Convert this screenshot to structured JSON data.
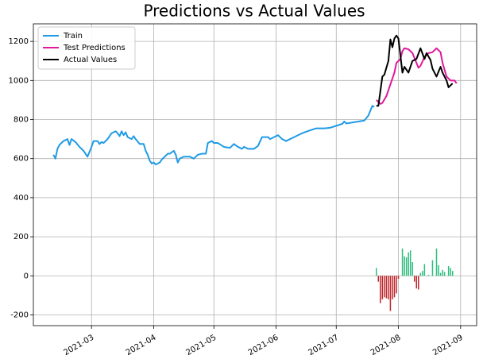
{
  "chart_data": {
    "type": "line",
    "title": "Predictions vs Actual Values",
    "xlim": [
      30,
      251
    ],
    "ylim": [
      -255,
      1290
    ],
    "xticks": [
      {
        "value": 59,
        "label": "2021-03"
      },
      {
        "value": 90,
        "label": "2021-04"
      },
      {
        "value": 120,
        "label": "2021-05"
      },
      {
        "value": 151,
        "label": "2021-06"
      },
      {
        "value": 181,
        "label": "2021-07"
      },
      {
        "value": 212,
        "label": "2021-08"
      },
      {
        "value": 243,
        "label": "2021-09"
      }
    ],
    "yticks": [
      -200,
      0,
      200,
      400,
      600,
      800,
      1000,
      1200
    ],
    "grid": true,
    "legend": "upper left",
    "series": [
      {
        "name": "Train",
        "type": "line",
        "color": "#1f9be6",
        "x": [
          40,
          41,
          42,
          43,
          45,
          46,
          47,
          48,
          49,
          51,
          53,
          55,
          57,
          59,
          60,
          62,
          63,
          64,
          65,
          67,
          69,
          71,
          72,
          73,
          74,
          75,
          76,
          77,
          79,
          80,
          81,
          83,
          85,
          86,
          87,
          88,
          89,
          90,
          91,
          93,
          94,
          96,
          97,
          98,
          100,
          101,
          102,
          103,
          105,
          108,
          110,
          112,
          114,
          116,
          117,
          119,
          120,
          122,
          125,
          128,
          130,
          132,
          134,
          135,
          137,
          140,
          142,
          144,
          147,
          148,
          150,
          152,
          154,
          156,
          160,
          164,
          168,
          171,
          175,
          178,
          181,
          184,
          185,
          186,
          189,
          192,
          195,
          197,
          199,
          200
        ],
        "values": [
          620,
          600,
          650,
          670,
          690,
          695,
          700,
          670,
          700,
          685,
          660,
          640,
          610,
          660,
          690,
          690,
          675,
          685,
          680,
          700,
          730,
          740,
          730,
          715,
          740,
          720,
          735,
          710,
          700,
          715,
          700,
          675,
          675,
          640,
          620,
          590,
          575,
          580,
          570,
          580,
          595,
          615,
          625,
          625,
          640,
          620,
          580,
          600,
          610,
          610,
          600,
          620,
          625,
          625,
          680,
          690,
          680,
          680,
          660,
          655,
          675,
          660,
          650,
          660,
          650,
          650,
          665,
          710,
          710,
          700,
          710,
          720,
          700,
          690,
          710,
          730,
          745,
          755,
          755,
          758,
          768,
          778,
          790,
          780,
          785,
          790,
          795,
          820,
          870,
          865
        ]
      },
      {
        "name": "Test Predictions",
        "type": "line",
        "color": "#e0199b",
        "x": [
          201,
          203,
          204,
          206,
          208,
          210,
          211,
          213,
          214,
          215,
          217,
          219,
          222,
          223,
          225,
          227,
          229,
          231,
          233,
          234,
          236,
          238,
          240,
          241
        ],
        "values": [
          900,
          880,
          885,
          920,
          980,
          1040,
          1090,
          1110,
          1150,
          1165,
          1160,
          1140,
          1065,
          1075,
          1120,
          1140,
          1145,
          1165,
          1145,
          1090,
          1020,
          1000,
          1000,
          985
        ]
      },
      {
        "name": "Actual Values",
        "type": "line",
        "color": "#000000",
        "x": [
          201,
          202,
          204,
          205,
          207,
          208,
          209,
          210,
          211,
          212,
          214,
          215,
          217,
          219,
          221,
          223,
          225,
          226,
          228,
          229,
          231,
          233,
          234,
          236,
          237,
          239
        ],
        "values": [
          870,
          870,
          1020,
          1030,
          1100,
          1210,
          1170,
          1215,
          1230,
          1215,
          1040,
          1070,
          1040,
          1100,
          1110,
          1165,
          1110,
          1140,
          1105,
          1060,
          1020,
          1070,
          1040,
          1000,
          965,
          985
        ]
      },
      {
        "type": "bar",
        "pos_color": "#2ebd7e",
        "neg_color": "#c0272d",
        "x": [
          201,
          202,
          203,
          204,
          205,
          206,
          207,
          208,
          209,
          210,
          211,
          212,
          214,
          215,
          216,
          217,
          218,
          219,
          220,
          221,
          222,
          223,
          224,
          225,
          227,
          229,
          231,
          232,
          233,
          234,
          235,
          237,
          238,
          239
        ],
        "values": [
          40,
          -30,
          -140,
          -120,
          -110,
          -115,
          -120,
          -180,
          -120,
          -110,
          -90,
          -15,
          140,
          100,
          95,
          120,
          130,
          70,
          -30,
          -65,
          -70,
          15,
          25,
          60,
          5,
          80,
          140,
          55,
          15,
          30,
          20,
          50,
          40,
          25
        ]
      }
    ]
  }
}
